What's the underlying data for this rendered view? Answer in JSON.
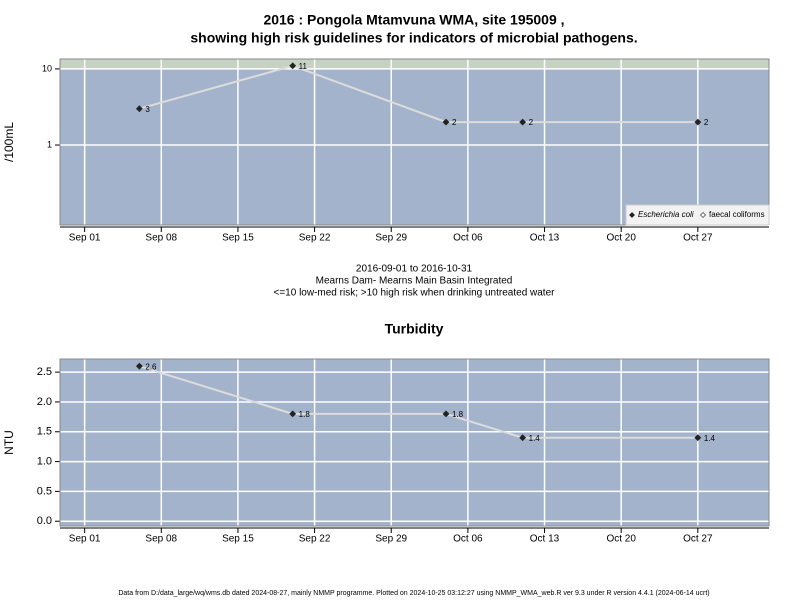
{
  "chart_data": [
    {
      "type": "line",
      "title": "2016 : Pongola Mtamvuna WMA, site 195009 ,",
      "subtitle": "showing high risk guidelines for indicators of microbial pathogens.",
      "ylabel": "/100mL",
      "log_y": true,
      "grid": true,
      "legend": "bottom-right",
      "high_risk_threshold": 10,
      "high_risk_color": "#c8d2c2",
      "background": "#a3b3cb",
      "x": [
        "2016-09-06",
        "2016-09-20",
        "2016-10-04",
        "2016-10-11",
        "2016-10-27"
      ],
      "xlim": [
        "2016-08-29 18:00",
        "2016-11-02 12:00"
      ],
      "xticks": [
        {
          "value": "2016-09-01",
          "label": "Sep 01"
        },
        {
          "value": "2016-09-08",
          "label": "Sep 08"
        },
        {
          "value": "2016-09-15",
          "label": "Sep 15"
        },
        {
          "value": "2016-09-22",
          "label": "Sep 22"
        },
        {
          "value": "2016-09-29",
          "label": "Sep 29"
        },
        {
          "value": "2016-10-06",
          "label": "Oct 06"
        },
        {
          "value": "2016-10-13",
          "label": "Oct 13"
        },
        {
          "value": "2016-10-20",
          "label": "Oct 20"
        },
        {
          "value": "2016-10-27",
          "label": "Oct 27"
        }
      ],
      "ylim": [
        0.089,
        13.5
      ],
      "yticks": [
        1,
        10
      ],
      "series": [
        {
          "name": "Escherichia coli",
          "color": "#dcdcdc",
          "marker": "filled",
          "values": [
            3,
            11,
            2,
            2,
            2
          ]
        },
        {
          "name": "faecal coliforms",
          "color": "#dcdcdc",
          "marker": "open",
          "values": [
            null,
            null,
            null,
            null,
            null
          ]
        }
      ],
      "notes": [
        "2016-09-01 to 2016-10-31",
        "Mearns Dam- Mearns Main Basin Integrated",
        "<=10 low-med risk; >10 high risk when drinking untreated water"
      ]
    },
    {
      "type": "line",
      "title": "Turbidity",
      "ylabel": "NTU",
      "log_y": false,
      "grid": true,
      "background": "#a3b3cb",
      "x": [
        "2016-09-06",
        "2016-09-20",
        "2016-10-04",
        "2016-10-11",
        "2016-10-27"
      ],
      "xlim": [
        "2016-08-29 18:00",
        "2016-11-02 12:00"
      ],
      "xticks": [
        {
          "value": "2016-09-01",
          "label": "Sep 01"
        },
        {
          "value": "2016-09-08",
          "label": "Sep 08"
        },
        {
          "value": "2016-09-15",
          "label": "Sep 15"
        },
        {
          "value": "2016-09-22",
          "label": "Sep 22"
        },
        {
          "value": "2016-09-29",
          "label": "Sep 29"
        },
        {
          "value": "2016-10-06",
          "label": "Oct 06"
        },
        {
          "value": "2016-10-13",
          "label": "Oct 13"
        },
        {
          "value": "2016-10-20",
          "label": "Oct 20"
        },
        {
          "value": "2016-10-27",
          "label": "Oct 27"
        }
      ],
      "ylim": [
        -0.08,
        2.72
      ],
      "yticks": [
        {
          "value": 0,
          "label": "0.0"
        },
        {
          "value": 0.5,
          "label": "0.5"
        },
        {
          "value": 1,
          "label": "1.0"
        },
        {
          "value": 1.5,
          "label": "1.5"
        },
        {
          "value": 2,
          "label": "2.0"
        },
        {
          "value": 2.5,
          "label": "2.5"
        }
      ],
      "series": [
        {
          "name": "Turbidity",
          "color": "#dcdcdc",
          "marker": "filled",
          "values": [
            2.6,
            1.8,
            1.8,
            1.4,
            1.4
          ]
        }
      ]
    }
  ],
  "footer": "Data from D:/data_large/wq/wms.db dated 2024-08-27, mainly NMMP programme. Plotted on 2024-10-25 03:12:27 using NMMP_WMA_web.R ver 9.3 under R version 4.4.1 (2024-06-14 ucrt)"
}
